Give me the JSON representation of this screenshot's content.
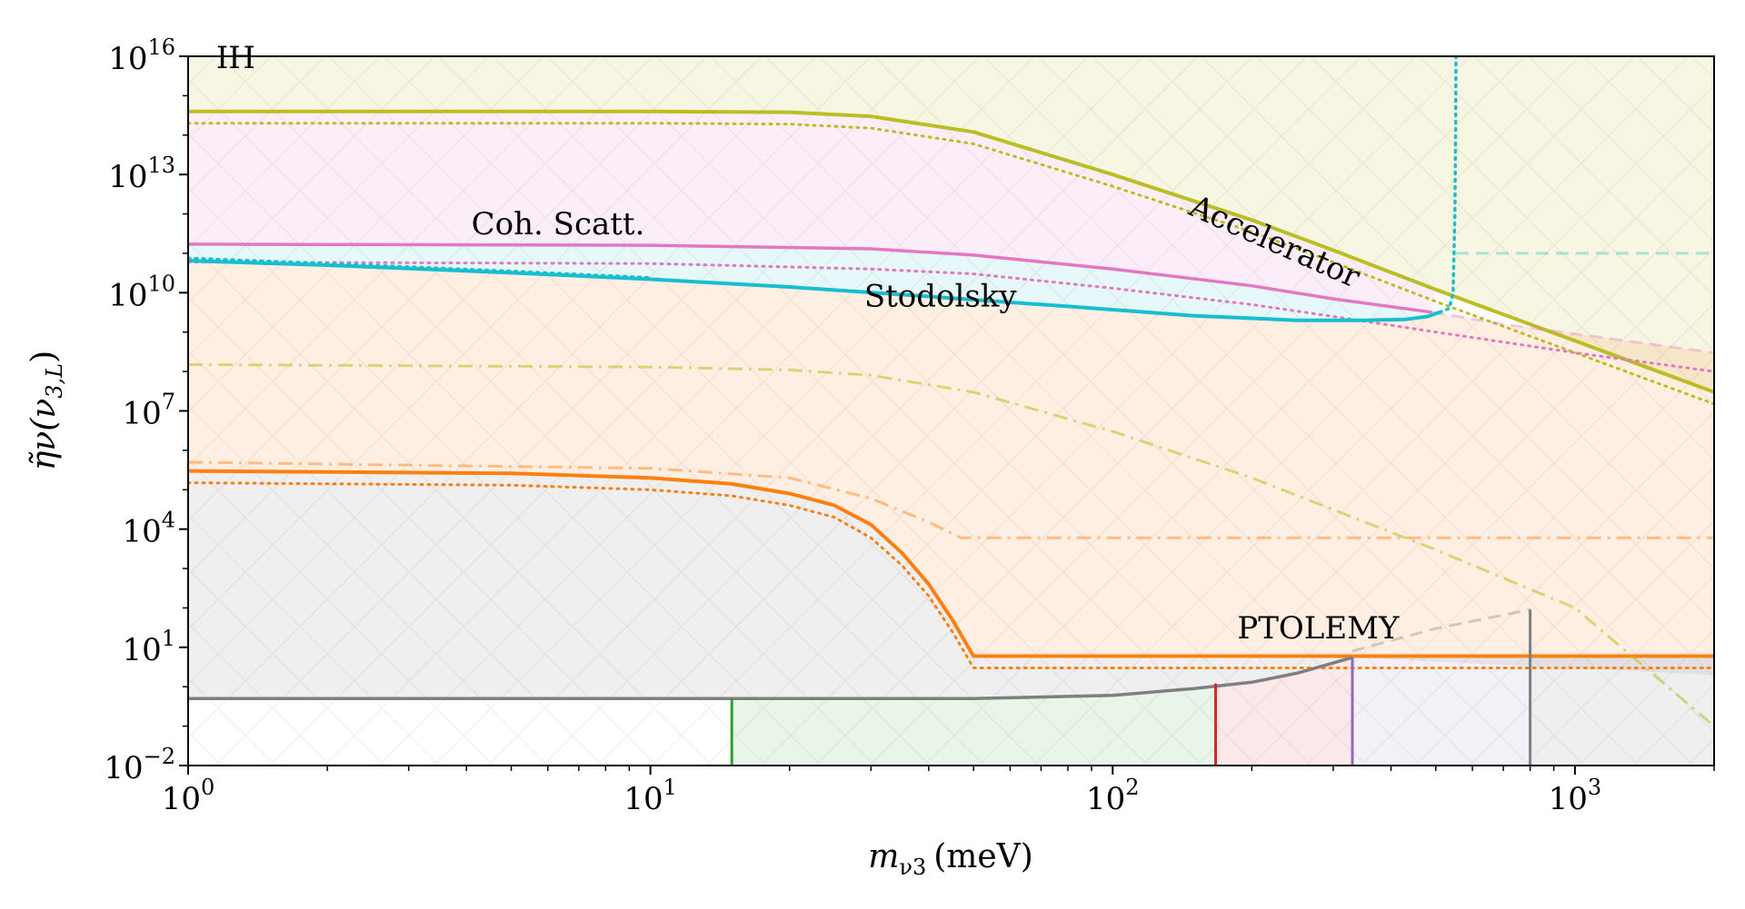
{
  "chart_data": {
    "type": "line",
    "xscale": "log",
    "yscale": "log",
    "xlim": [
      1,
      2000
    ],
    "ylim": [
      0.01,
      1e+16
    ],
    "xlabel_main": "m",
    "xlabel_sub": "ν3",
    "xlabel_unit": "(meV)",
    "ylabel_main": "η̃ν(ν",
    "ylabel_sub": "3,L",
    "ylabel_close": ")",
    "x_ticks": [
      {
        "value": 1,
        "base": "10",
        "exp": "0"
      },
      {
        "value": 10,
        "base": "10",
        "exp": "1"
      },
      {
        "value": 100,
        "base": "10",
        "exp": "2"
      },
      {
        "value": 1000,
        "base": "10",
        "exp": "3"
      }
    ],
    "y_ticks": [
      {
        "value": 0.01,
        "base": "10",
        "exp": "−2"
      },
      {
        "value": 10,
        "base": "10",
        "exp": "1"
      },
      {
        "value": 10000,
        "base": "10",
        "exp": "4"
      },
      {
        "value": 10000000,
        "base": "10",
        "exp": "7"
      },
      {
        "value": 10000000000,
        "base": "10",
        "exp": "10"
      },
      {
        "value": 10000000000000,
        "base": "10",
        "exp": "13"
      },
      {
        "value": 10000000000000000,
        "base": "10",
        "exp": "16"
      }
    ],
    "annotations": [
      {
        "text": "IH",
        "x": 1.15,
        "y": 5000000000000000.0,
        "rotate": 0
      },
      {
        "text": "Accelerator",
        "x": 145,
        "y": 1000000000000.0,
        "rotate": 24
      },
      {
        "text": "Coh. Scatt.",
        "x": 4.1,
        "y": 300000000000.0,
        "rotate": 0
      },
      {
        "text": "Stodolsky",
        "x": 29,
        "y": 4500000000.0,
        "rotate": 0
      },
      {
        "text": "PTOLEMY",
        "x": 186,
        "y": 17,
        "rotate": 0
      }
    ],
    "colors": {
      "accelerator": "#bcbd22",
      "coh_scatt": "#e377c2",
      "stodolsky": "#17becf",
      "ptolemy": "#ff7f0e",
      "baseline": "#7f7f7f",
      "green": "#2ca02c",
      "red": "#d62728",
      "purple": "#9467bd"
    },
    "series": [
      {
        "name": "Accelerator (solid)",
        "color": "#bcbd22",
        "style": "solid",
        "width": 4,
        "points": [
          [
            1,
            400000000000000.0
          ],
          [
            10,
            400000000000000.0
          ],
          [
            20,
            380000000000000.0
          ],
          [
            30,
            300000000000000.0
          ],
          [
            50,
            120000000000000.0
          ],
          [
            100,
            10000000000000.0
          ],
          [
            200,
            700000000000.0
          ],
          [
            300,
            120000000000.0
          ],
          [
            500,
            12000000000.0
          ],
          [
            1000,
            600000000.0
          ],
          [
            2000,
            30000000.0
          ]
        ]
      },
      {
        "name": "Accelerator (dotted)",
        "color": "#bcbd22",
        "style": "dotted",
        "width": 3,
        "points": [
          [
            1,
            200000000000000.0
          ],
          [
            10,
            200000000000000.0
          ],
          [
            20,
            190000000000000.0
          ],
          [
            30,
            150000000000000.0
          ],
          [
            50,
            60000000000000.0
          ],
          [
            100,
            5000000000000.0
          ],
          [
            200,
            350000000000.0
          ],
          [
            300,
            60000000000.0
          ],
          [
            500,
            6000000000.0
          ],
          [
            1000,
            300000000.0
          ],
          [
            2000,
            15000000.0
          ]
        ]
      },
      {
        "name": "Coh. Scatt. (solid)",
        "color": "#e377c2",
        "style": "solid",
        "width": 3.5,
        "points": [
          [
            1,
            170000000000.0
          ],
          [
            10,
            160000000000.0
          ],
          [
            30,
            130000000000.0
          ],
          [
            50,
            90000000000.0
          ],
          [
            100,
            40000000000.0
          ],
          [
            200,
            15000000000.0
          ],
          [
            300,
            7000000000.0
          ],
          [
            490,
            3200000000.0
          ]
        ]
      },
      {
        "name": "Coh. Scatt. (dotted)",
        "color": "#e377c2",
        "style": "dotted",
        "width": 3,
        "points": [
          [
            1,
            60000000000.0
          ],
          [
            10,
            55000000000.0
          ],
          [
            30,
            40000000000.0
          ],
          [
            50,
            30000000000.0
          ],
          [
            100,
            13000000000.0
          ],
          [
            200,
            5000000000.0
          ],
          [
            300,
            2500000000.0
          ],
          [
            500,
            1000000000.0
          ],
          [
            1000,
            300000000.0
          ],
          [
            2000,
            100000000.0
          ]
        ]
      },
      {
        "name": "Coh. Scatt. (dashed faint)",
        "color": "#e377c2",
        "style": "dashed",
        "width": 3,
        "opacity": 0.35,
        "points": [
          [
            490,
            3200000000.0
          ],
          [
            700,
            1600000000.0
          ],
          [
            1000,
            900000000.0
          ],
          [
            2000,
            300000000.0
          ]
        ]
      },
      {
        "name": "Stodolsky (solid)",
        "color": "#17becf",
        "style": "solid",
        "width": 4,
        "points": [
          [
            1,
            65000000000.0
          ],
          [
            2,
            50000000000.0
          ],
          [
            5,
            32000000000.0
          ],
          [
            10,
            22000000000.0
          ],
          [
            20,
            14000000000.0
          ],
          [
            40,
            8000000000.0
          ],
          [
            80,
            4500000000.0
          ],
          [
            150,
            2600000000.0
          ],
          [
            250,
            2000000000.0
          ],
          [
            350,
            2000000000.0
          ],
          [
            430,
            2100000000.0
          ],
          [
            480,
            2500000000.0
          ],
          [
            510,
            3200000000.0
          ]
        ]
      },
      {
        "name": "Stodolsky (dotted vertical)",
        "color": "#17becf",
        "style": "dotted",
        "width": 3.5,
        "points": [
          [
            1,
            75000000000.0
          ],
          [
            2,
            55000000000.0
          ],
          [
            5,
            35000000000.0
          ],
          [
            10,
            24000000000.0
          ]
        ]
      },
      {
        "name": "Stodolsky (dotted edge)",
        "color": "#17becf",
        "style": "dotted",
        "width": 3.5,
        "points": [
          [
            510,
            3200000000.0
          ],
          [
            535,
            4000000000.0
          ],
          [
            545,
            10000000000.0
          ],
          [
            550,
            1000000000000.0
          ],
          [
            552,
            100000000000000.0
          ],
          [
            553,
            1e+16
          ]
        ]
      },
      {
        "name": "Stodolsky (dashed faint)",
        "color": "#17becf",
        "style": "dashed",
        "width": 3,
        "opacity": 0.35,
        "points": [
          [
            553,
            100000000000.0
          ],
          [
            2000,
            100000000000.0
          ]
        ]
      },
      {
        "name": "PTOLEMY (solid)",
        "color": "#ff7f0e",
        "style": "solid",
        "width": 4,
        "points": [
          [
            1,
            300000.0
          ],
          [
            5,
            260000.0
          ],
          [
            10,
            200000.0
          ],
          [
            15,
            140000.0
          ],
          [
            20,
            80000.0
          ],
          [
            25,
            40000.0
          ],
          [
            30,
            13000.0
          ],
          [
            35,
            2500.0
          ],
          [
            40,
            400
          ],
          [
            45,
            50
          ],
          [
            50,
            6
          ],
          [
            100,
            6
          ],
          [
            500,
            6
          ],
          [
            2000,
            6
          ]
        ]
      },
      {
        "name": "PTOLEMY (dotted)",
        "color": "#ff7f0e",
        "style": "dotted",
        "width": 3,
        "points": [
          [
            1,
            150000.0
          ],
          [
            5,
            130000.0
          ],
          [
            10,
            100000.0
          ],
          [
            15,
            70000.0
          ],
          [
            20,
            40000.0
          ],
          [
            25,
            20000.0
          ],
          [
            30,
            6000.0
          ],
          [
            35,
            1200.0
          ],
          [
            40,
            200
          ],
          [
            45,
            25
          ],
          [
            50,
            3
          ],
          [
            100,
            3
          ],
          [
            500,
            3
          ],
          [
            2000,
            3
          ]
        ]
      },
      {
        "name": "PTOLEMY (dash-dot faint)",
        "color": "#ff7f0e",
        "style": "dashdot",
        "width": 3,
        "opacity": 0.45,
        "points": [
          [
            1,
            500000.0
          ],
          [
            10,
            350000.0
          ],
          [
            20,
            200000.0
          ],
          [
            30,
            60000.0
          ],
          [
            40,
            15000.0
          ],
          [
            47,
            6000.0
          ],
          [
            100,
            6000.0
          ],
          [
            500,
            6000.0
          ],
          [
            2000,
            6000.0
          ]
        ]
      },
      {
        "name": "Accelerator (dash-dot faint)",
        "color": "#bcbd22",
        "style": "dashdot",
        "width": 3,
        "opacity": 0.55,
        "points": [
          [
            1,
            150000000.0
          ],
          [
            10,
            130000000.0
          ],
          [
            20,
            110000000.0
          ],
          [
            30,
            80000000.0
          ],
          [
            50,
            30000000.0
          ],
          [
            100,
            3000000.0
          ],
          [
            200,
            200000.0
          ],
          [
            500,
            3000.0
          ],
          [
            1000,
            100.0
          ],
          [
            2000,
            0.1
          ]
        ]
      },
      {
        "name": "Baseline (gray)",
        "color": "#7f7f7f",
        "style": "solid",
        "width": 3.5,
        "points": [
          [
            1,
            0.5
          ],
          [
            10,
            0.5
          ],
          [
            50,
            0.5
          ],
          [
            100,
            0.6
          ],
          [
            150,
            0.9
          ],
          [
            200,
            1.3
          ],
          [
            250,
            2.2
          ],
          [
            300,
            4
          ],
          [
            330,
            5.5
          ]
        ]
      },
      {
        "name": "Gray dashed faint",
        "color": "#7f7f7f",
        "style": "dashed",
        "width": 3,
        "opacity": 0.35,
        "points": [
          [
            330,
            8
          ],
          [
            500,
            30
          ],
          [
            800,
            90
          ],
          [
            800,
            7
          ]
        ]
      }
    ],
    "vertical_lines": [
      {
        "x": 15,
        "color": "#2ca02c",
        "y_top": 0.5
      },
      {
        "x": 167,
        "color": "#d62728",
        "y_top": 1.2
      },
      {
        "x": 330,
        "color": "#9467bd",
        "y_top": 5.5
      },
      {
        "x": 800,
        "color": "#7f7f7f",
        "y_top": 90
      }
    ]
  }
}
